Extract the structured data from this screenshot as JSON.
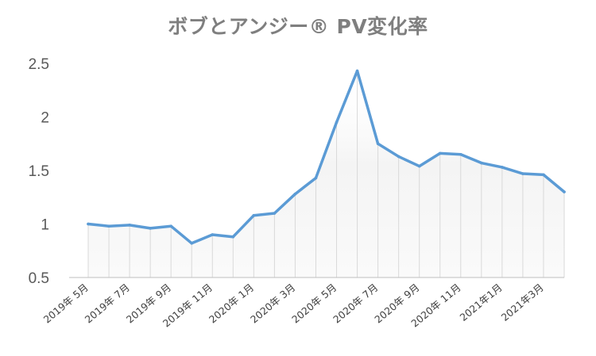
{
  "chart_data": {
    "type": "line",
    "title": "ボブとアンジー® PV変化率",
    "xlabel": "",
    "ylabel": "",
    "ylim": [
      0.5,
      2.5
    ],
    "y_ticks": [
      "0.5",
      "1",
      "1.5",
      "2",
      "2.5"
    ],
    "y_tick_values": [
      0.5,
      1,
      1.5,
      2,
      2.5
    ],
    "grid": false,
    "legend": "none",
    "x_tick_labels": [
      "2019年 5月",
      "2019年 7月",
      "2019年 9月",
      "2019年 11月",
      "2020年 1月",
      "2020年 3月",
      "2020年 5月",
      "2020年 7月",
      "2020年 9月",
      "2020年 11月",
      "2021年1月",
      "2021年3月"
    ],
    "x_tick_label_every": 2,
    "x": [
      "2019-05",
      "2019-06",
      "2019-07",
      "2019-08",
      "2019-09",
      "2019-10",
      "2019-11",
      "2019-12",
      "2020-01",
      "2020-02",
      "2020-03",
      "2020-04",
      "2020-05",
      "2020-06",
      "2020-07",
      "2020-08",
      "2020-09",
      "2020-10",
      "2020-11",
      "2020-12",
      "2021-01",
      "2021-02",
      "2021-03",
      "2021-04"
    ],
    "values": [
      1.0,
      0.98,
      0.99,
      0.96,
      0.98,
      0.82,
      0.9,
      0.88,
      1.08,
      1.1,
      1.28,
      1.43,
      1.95,
      2.43,
      1.75,
      1.63,
      1.54,
      1.66,
      1.65,
      1.57,
      1.53,
      1.47,
      1.46,
      1.3
    ],
    "colors": {
      "line": "#5b9bd5",
      "drop_lines": "#d9d9d9",
      "area_fill_top": "#f2f2f2",
      "axis": "#bfbfbf",
      "title": "#7f7f7f"
    }
  }
}
